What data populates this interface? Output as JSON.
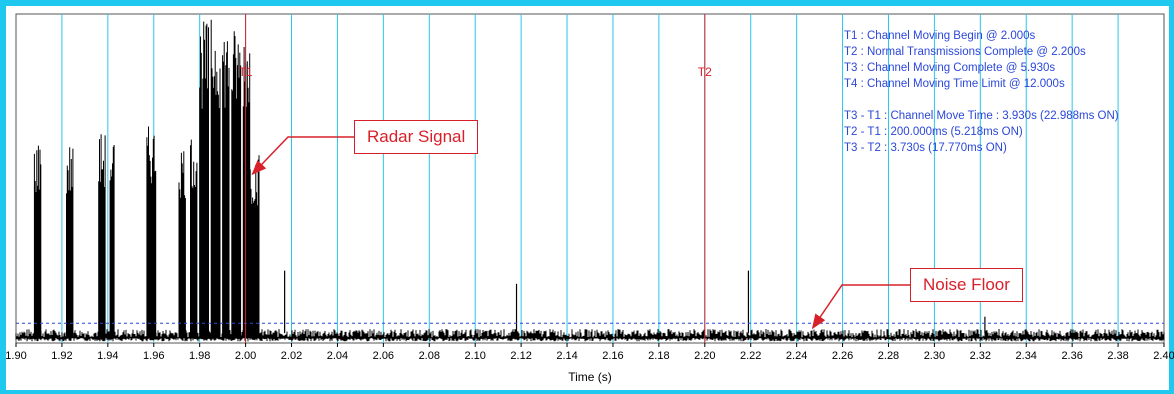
{
  "chart_data": {
    "type": "line",
    "xlabel": "Time (s)",
    "ylabel": "",
    "xlim": [
      1.9,
      2.4
    ],
    "x_ticks": [
      "1.90",
      "1.92",
      "1.94",
      "1.96",
      "1.98",
      "2.00",
      "2.02",
      "2.04",
      "2.06",
      "2.08",
      "2.10",
      "2.12",
      "2.14",
      "2.16",
      "2.18",
      "2.20",
      "2.22",
      "2.24",
      "2.26",
      "2.28",
      "2.30",
      "2.32",
      "2.34",
      "2.36",
      "2.38",
      "2.40"
    ],
    "grid": true,
    "markers": [
      {
        "label": "T1",
        "x": 2.0
      },
      {
        "label": "T2",
        "x": 2.2
      }
    ],
    "threshold_line": {
      "style": "dashed",
      "level": 0.06
    },
    "noise_floor_level": 0.03,
    "pulse_bursts": [
      {
        "x_start": 1.908,
        "x_end": 1.911,
        "peak": 0.62
      },
      {
        "x_start": 1.922,
        "x_end": 1.925,
        "peak": 0.61
      },
      {
        "x_start": 1.936,
        "x_end": 1.939,
        "peak": 0.64
      },
      {
        "x_start": 1.941,
        "x_end": 1.943,
        "peak": 0.63
      },
      {
        "x_start": 1.957,
        "x_end": 1.961,
        "peak": 0.66
      },
      {
        "x_start": 1.971,
        "x_end": 1.974,
        "peak": 0.61
      },
      {
        "x_start": 1.976,
        "x_end": 1.979,
        "peak": 0.64
      },
      {
        "x_start": 1.98,
        "x_end": 1.984,
        "peak": 0.98
      },
      {
        "x_start": 1.985,
        "x_end": 1.989,
        "peak": 0.99
      },
      {
        "x_start": 1.99,
        "x_end": 1.993,
        "peak": 0.97
      },
      {
        "x_start": 1.994,
        "x_end": 1.998,
        "peak": 0.96
      },
      {
        "x_start": 1.999,
        "x_end": 2.002,
        "peak": 0.97
      },
      {
        "x_start": 2.002,
        "x_end": 2.006,
        "peak": 0.58
      }
    ],
    "isolated_spikes": [
      {
        "x": 2.017,
        "peak": 0.22
      },
      {
        "x": 2.118,
        "peak": 0.18
      },
      {
        "x": 2.219,
        "peak": 0.22
      },
      {
        "x": 2.322,
        "peak": 0.08
      }
    ],
    "annotations": [
      "T1 : Channel Moving Begin @ 2.000s",
      "T2 : Normal Transmissions Complete @ 2.200s",
      "T3 : Channel Moving Complete @ 5.930s",
      "T4 : Channel Moving Time Limit @ 12.000s",
      "T3 - T1 : Channel Move Time : 3.930s (22.988ms ON)",
      "T2 - T1 : 200.000ms (5.218ms ON)",
      "T3 - T2 : 3.730s (17.770ms ON)"
    ],
    "callouts": [
      "Radar Signal",
      "Noise Floor"
    ],
    "colors": {
      "frame": "#1ec8ee",
      "grid": "#29c6ea",
      "signal": "#000000",
      "marker": "#d8202a",
      "threshold": "#2b47d8",
      "annotation_text": "#2b47d8",
      "callout": "#d8202a"
    }
  }
}
